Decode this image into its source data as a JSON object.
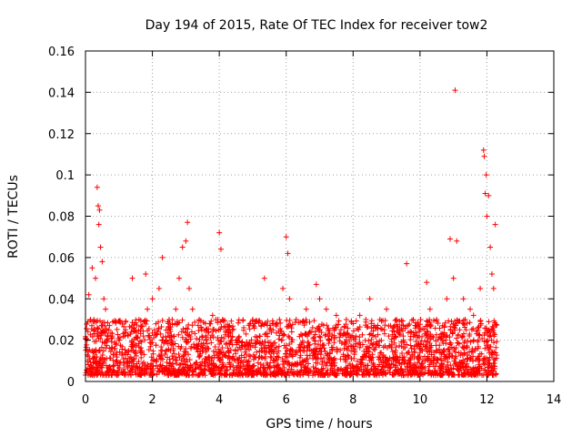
{
  "chart_data": {
    "type": "scatter",
    "title": "Day 194 of 2015, Rate Of TEC Index for receiver tow2",
    "xlabel": "GPS time / hours",
    "ylabel": "ROTI / TECUs",
    "xlim": [
      0,
      14
    ],
    "ylim": [
      0,
      0.16
    ],
    "xticks": [
      0,
      2,
      4,
      6,
      8,
      10,
      12,
      14
    ],
    "xtick_labels": [
      "0",
      "2",
      "4",
      "6",
      "8",
      "10",
      "12",
      "14"
    ],
    "yticks": [
      0,
      0.02,
      0.04,
      0.06,
      0.08,
      0.1,
      0.12,
      0.14,
      0.16
    ],
    "ytick_labels": [
      "0",
      "0.02",
      "0.04",
      "0.06",
      "0.08",
      "0.1",
      "0.12",
      "0.14",
      "0.16"
    ],
    "grid": true,
    "marker": "+",
    "color": "#ff0000",
    "series": [
      {
        "name": "ROTI",
        "x": [
          0.05,
          0.1,
          0.15,
          0.2,
          0.25,
          0.3,
          0.35,
          0.38,
          0.4,
          0.42,
          0.45,
          0.5,
          0.55,
          0.6,
          0.7,
          0.8,
          0.9,
          1.0,
          1.2,
          1.4,
          1.6,
          1.8,
          1.85,
          2.0,
          2.2,
          2.3,
          2.5,
          2.7,
          2.8,
          2.9,
          3.0,
          3.05,
          3.1,
          3.2,
          3.4,
          3.6,
          3.8,
          4.0,
          4.05,
          4.1,
          4.3,
          4.5,
          4.8,
          5.0,
          5.2,
          5.35,
          5.5,
          5.8,
          5.9,
          6.0,
          6.05,
          6.1,
          6.3,
          6.6,
          6.9,
          7.0,
          7.2,
          7.5,
          7.8,
          8.0,
          8.2,
          8.5,
          8.8,
          9.0,
          9.3,
          9.5,
          9.6,
          9.8,
          10.0,
          10.2,
          10.3,
          10.5,
          10.8,
          10.9,
          11.0,
          11.05,
          11.1,
          11.3,
          11.5,
          11.6,
          11.8,
          11.9,
          11.92,
          11.95,
          11.98,
          12.0,
          12.05,
          12.1,
          12.15,
          12.2,
          12.25
        ],
        "y": [
          0.02,
          0.042,
          0.03,
          0.055,
          0.03,
          0.05,
          0.094,
          0.085,
          0.076,
          0.083,
          0.065,
          0.058,
          0.04,
          0.035,
          0.025,
          0.022,
          0.018,
          0.02,
          0.025,
          0.05,
          0.03,
          0.052,
          0.035,
          0.04,
          0.045,
          0.06,
          0.03,
          0.035,
          0.05,
          0.065,
          0.068,
          0.077,
          0.045,
          0.035,
          0.03,
          0.025,
          0.032,
          0.072,
          0.064,
          0.03,
          0.025,
          0.02,
          0.023,
          0.03,
          0.022,
          0.05,
          0.025,
          0.03,
          0.045,
          0.07,
          0.062,
          0.04,
          0.03,
          0.035,
          0.047,
          0.04,
          0.035,
          0.032,
          0.03,
          0.028,
          0.032,
          0.04,
          0.03,
          0.035,
          0.03,
          0.022,
          0.057,
          0.03,
          0.025,
          0.048,
          0.035,
          0.03,
          0.04,
          0.069,
          0.05,
          0.141,
          0.068,
          0.04,
          0.035,
          0.032,
          0.045,
          0.112,
          0.109,
          0.091,
          0.1,
          0.08,
          0.09,
          0.065,
          0.052,
          0.045,
          0.076
        ]
      }
    ],
    "dense_band": {
      "x_range": [
        0,
        12.3
      ],
      "y_range": [
        0.003,
        0.03
      ]
    }
  }
}
